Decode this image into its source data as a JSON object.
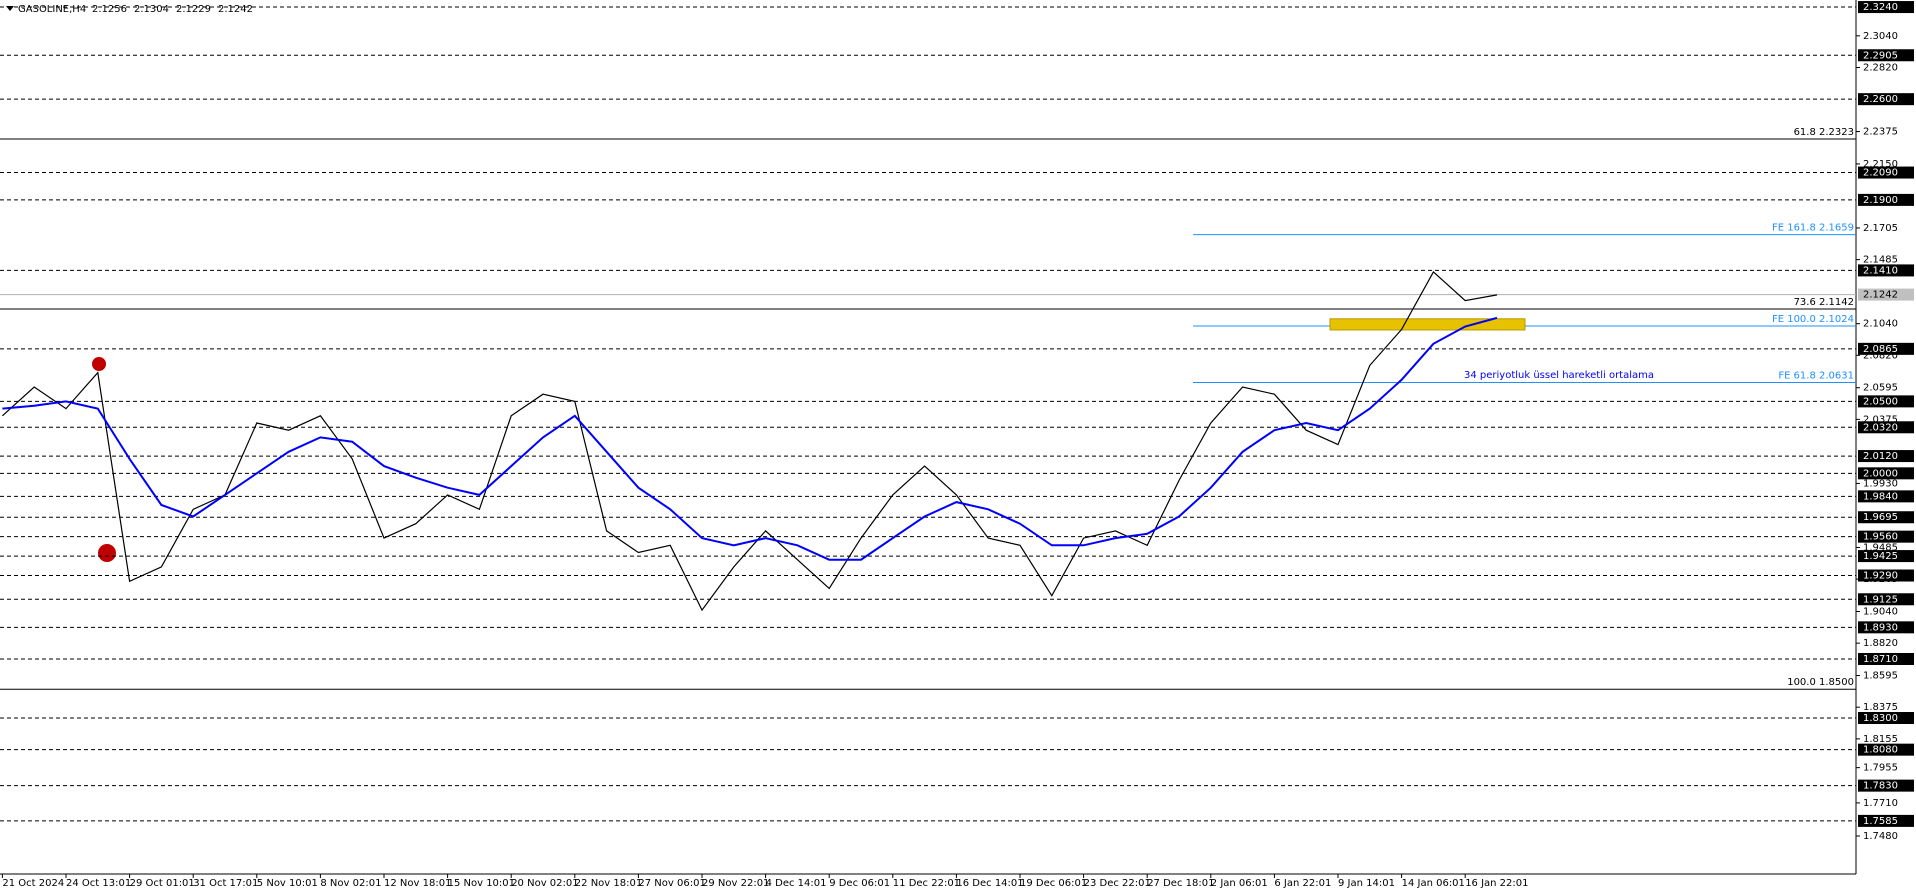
{
  "chart_data": {
    "type": "line",
    "header": {
      "open": 2.1256,
      "high": 2.1304,
      "low": 2.1229,
      "close": 2.1242
    },
    "categories": [
      "21 Oct 2024",
      null,
      "24 Oct 13:01",
      null,
      "29 Oct 01:01",
      null,
      "31 Oct 17:01",
      null,
      "5 Nov 10:01",
      null,
      "8 Nov 02:01",
      null,
      "12 Nov 18:01",
      null,
      "15 Nov 10:01",
      null,
      "20 Nov 02:01",
      null,
      "22 Nov 18:01",
      null,
      "27 Nov 06:01",
      null,
      "29 Nov 22:01",
      null,
      "4 Dec 14:01",
      null,
      "9 Dec 06:01",
      null,
      "11 Dec 22:01",
      null,
      "16 Dec 14:01",
      null,
      "19 Dec 06:01",
      null,
      "23 Dec 22:01",
      null,
      "27 Dec 18:01",
      null,
      "2 Jan 06:01",
      null,
      "6 Jan 22:01",
      null,
      "9 Jan 14:01",
      null,
      "14 Jan 06:01",
      null,
      "16 Jan 22:01",
      null
    ],
    "series": [
      {
        "name": "GASOLINE,H4",
        "color": "#000000",
        "values": [
          2.04,
          2.06,
          2.045,
          2.07,
          1.925,
          1.935,
          1.975,
          1.985,
          2.035,
          2.03,
          2.04,
          2.01,
          1.955,
          1.965,
          1.985,
          1.975,
          2.04,
          2.055,
          2.05,
          1.96,
          1.945,
          1.95,
          1.905,
          1.935,
          1.96,
          1.94,
          1.92,
          1.955,
          1.985,
          2.005,
          1.985,
          1.955,
          1.95,
          1.915,
          1.955,
          1.96,
          1.95,
          1.995,
          2.035,
          2.06,
          2.055,
          2.03,
          2.02,
          2.075,
          2.1,
          2.14,
          2.12,
          2.124
        ]
      },
      {
        "name": "34 periyotluk üssel hareketli ortalama",
        "color": "#0000ff",
        "values": [
          2.045,
          2.047,
          2.05,
          2.045,
          2.01,
          1.978,
          1.97,
          1.985,
          2.0,
          2.015,
          2.025,
          2.022,
          2.005,
          1.997,
          1.99,
          1.985,
          2.005,
          2.025,
          2.04,
          2.015,
          1.99,
          1.975,
          1.955,
          1.95,
          1.955,
          1.95,
          1.94,
          1.94,
          1.955,
          1.97,
          1.98,
          1.975,
          1.965,
          1.95,
          1.95,
          1.955,
          1.958,
          1.97,
          1.99,
          2.015,
          2.03,
          2.035,
          2.03,
          2.045,
          2.065,
          2.09,
          2.102,
          2.108
        ]
      }
    ],
    "ylim": [
      1.7216,
      2.3289
    ],
    "yticks": [
      {
        "value": 2.304,
        "label": "2.3040"
      },
      {
        "value": 2.282,
        "label": "2.2820"
      },
      {
        "value": 2.2375,
        "label": "2.2375"
      },
      {
        "value": 2.215,
        "label": "2.2150"
      },
      {
        "value": 2.1705,
        "label": "2.1705"
      },
      {
        "value": 2.1485,
        "label": "2.1485"
      },
      {
        "value": 2.104,
        "label": "2.1040"
      },
      {
        "value": 2.082,
        "label": "2.0820"
      },
      {
        "value": 2.0595,
        "label": "2.0595"
      },
      {
        "value": 2.0375,
        "label": "2.0375"
      },
      {
        "value": 1.993,
        "label": "1.9930"
      },
      {
        "value": 1.9485,
        "label": "1.9485"
      },
      {
        "value": 1.9265,
        "label": "1.9265"
      },
      {
        "value": 1.904,
        "label": "1.9040"
      },
      {
        "value": 1.882,
        "label": "1.8820"
      },
      {
        "value": 1.8595,
        "label": "1.8595"
      },
      {
        "value": 1.8375,
        "label": "1.8375"
      },
      {
        "value": 1.8155,
        "label": "1.8155"
      },
      {
        "value": 1.7955,
        "label": "1.7955"
      },
      {
        "value": 1.771,
        "label": "1.7710"
      },
      {
        "value": 1.748,
        "label": "1.7480"
      }
    ],
    "levels": [
      {
        "value": 2.324,
        "label": "2.3240"
      },
      {
        "value": 2.2905,
        "label": "2.2905"
      },
      {
        "value": 2.26,
        "label": "2.2600"
      },
      {
        "value": 2.209,
        "label": "2.2090"
      },
      {
        "value": 2.19,
        "label": "2.1900"
      },
      {
        "value": 2.141,
        "label": "2.1410"
      },
      {
        "value": 2.0865,
        "label": "2.0865"
      },
      {
        "value": 2.05,
        "label": "2.0500"
      },
      {
        "value": 2.032,
        "label": "2.0320"
      },
      {
        "value": 2.012,
        "label": "2.0120"
      },
      {
        "value": 2.0,
        "label": "2.0000"
      },
      {
        "value": 1.984,
        "label": "1.9840"
      },
      {
        "value": 1.9695,
        "label": "1.9695"
      },
      {
        "value": 1.956,
        "label": "1.9560"
      },
      {
        "value": 1.9425,
        "label": "1.9425"
      },
      {
        "value": 1.929,
        "label": "1.9290"
      },
      {
        "value": 1.9125,
        "label": "1.9125"
      },
      {
        "value": 1.893,
        "label": "1.8930"
      },
      {
        "value": 1.871,
        "label": "1.8710"
      },
      {
        "value": 1.83,
        "label": "1.8300"
      },
      {
        "value": 1.808,
        "label": "1.8080"
      },
      {
        "value": 1.783,
        "label": "1.7830"
      },
      {
        "value": 1.7585,
        "label": "1.7585"
      }
    ],
    "current_price": 2.1242,
    "fibo": [
      {
        "value": 2.2323,
        "label": "61.8 2.2323"
      },
      {
        "value": 2.1142,
        "label": "73.6 2.1142"
      },
      {
        "value": 1.85,
        "label": "100.0 1.8500"
      }
    ],
    "fe": [
      {
        "value": 2.1659,
        "label": "FE 161.8 2.1659"
      },
      {
        "value": 2.1024,
        "label": "FE 100.0 2.1024"
      },
      {
        "value": 2.0631,
        "label": "FE 61.8 2.0631"
      }
    ],
    "zone": [
      2.101,
      2.106
    ]
  }
}
